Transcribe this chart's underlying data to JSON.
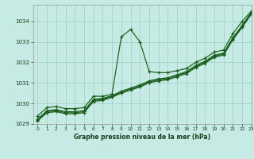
{
  "xlabel": "Graphe pression niveau de la mer (hPa)",
  "ylabel": "",
  "background_color": "#c5ebe4",
  "grid_color": "#aad4cc",
  "line_color": "#1a5c1a",
  "marker_color": "#1a5c1a",
  "xlim": [
    -0.5,
    23
  ],
  "ylim": [
    1029.0,
    1034.8
  ],
  "yticks": [
    1029,
    1030,
    1031,
    1032,
    1033,
    1034
  ],
  "xticks": [
    0,
    1,
    2,
    3,
    4,
    5,
    6,
    7,
    8,
    9,
    10,
    11,
    12,
    13,
    14,
    15,
    16,
    17,
    18,
    19,
    20,
    21,
    22,
    23
  ],
  "lines": [
    [
      1029.4,
      1029.8,
      1029.85,
      1029.75,
      1029.75,
      1029.8,
      1030.35,
      1030.35,
      1030.45,
      1033.25,
      1033.6,
      1033.0,
      1031.55,
      1031.5,
      1031.5,
      1031.6,
      1031.7,
      1032.0,
      1032.2,
      1032.5,
      1032.6,
      1033.4,
      1034.0,
      1034.5
    ],
    [
      1029.25,
      1029.65,
      1029.7,
      1029.6,
      1029.6,
      1029.65,
      1030.2,
      1030.25,
      1030.38,
      1030.6,
      1030.75,
      1030.9,
      1031.1,
      1031.2,
      1031.25,
      1031.4,
      1031.55,
      1031.85,
      1032.05,
      1032.35,
      1032.45,
      1033.2,
      1033.8,
      1034.45
    ],
    [
      1029.2,
      1029.6,
      1029.65,
      1029.55,
      1029.55,
      1029.6,
      1030.15,
      1030.2,
      1030.35,
      1030.55,
      1030.7,
      1030.85,
      1031.05,
      1031.15,
      1031.2,
      1031.35,
      1031.5,
      1031.8,
      1032.0,
      1032.3,
      1032.4,
      1033.15,
      1033.75,
      1034.4
    ],
    [
      1029.15,
      1029.55,
      1029.6,
      1029.5,
      1029.5,
      1029.55,
      1030.1,
      1030.15,
      1030.3,
      1030.5,
      1030.65,
      1030.8,
      1031.0,
      1031.1,
      1031.15,
      1031.3,
      1031.45,
      1031.75,
      1031.95,
      1032.25,
      1032.35,
      1033.1,
      1033.7,
      1034.35
    ]
  ]
}
